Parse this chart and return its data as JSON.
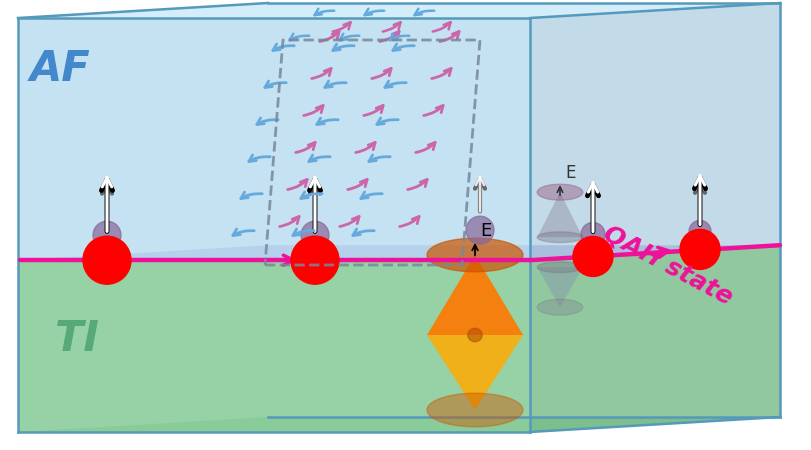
{
  "fig_width": 8.12,
  "fig_height": 4.5,
  "dpi": 100,
  "bg_color": "#ffffff",
  "ti_color": "#88cc99",
  "af_color": "#b8dcf0",
  "interface_color": "#7766bb",
  "edge_color": "#5599bb",
  "ec_color": "#ee1199",
  "blue_arrow": "#66aadd",
  "pink_arrow": "#cc66aa",
  "ti_label": "TI",
  "ti_label_color": "#55aa77",
  "af_label": "AF",
  "af_label_color": "#4488cc",
  "qah_label": "QAH state",
  "qah_label_color": "#ee1199"
}
